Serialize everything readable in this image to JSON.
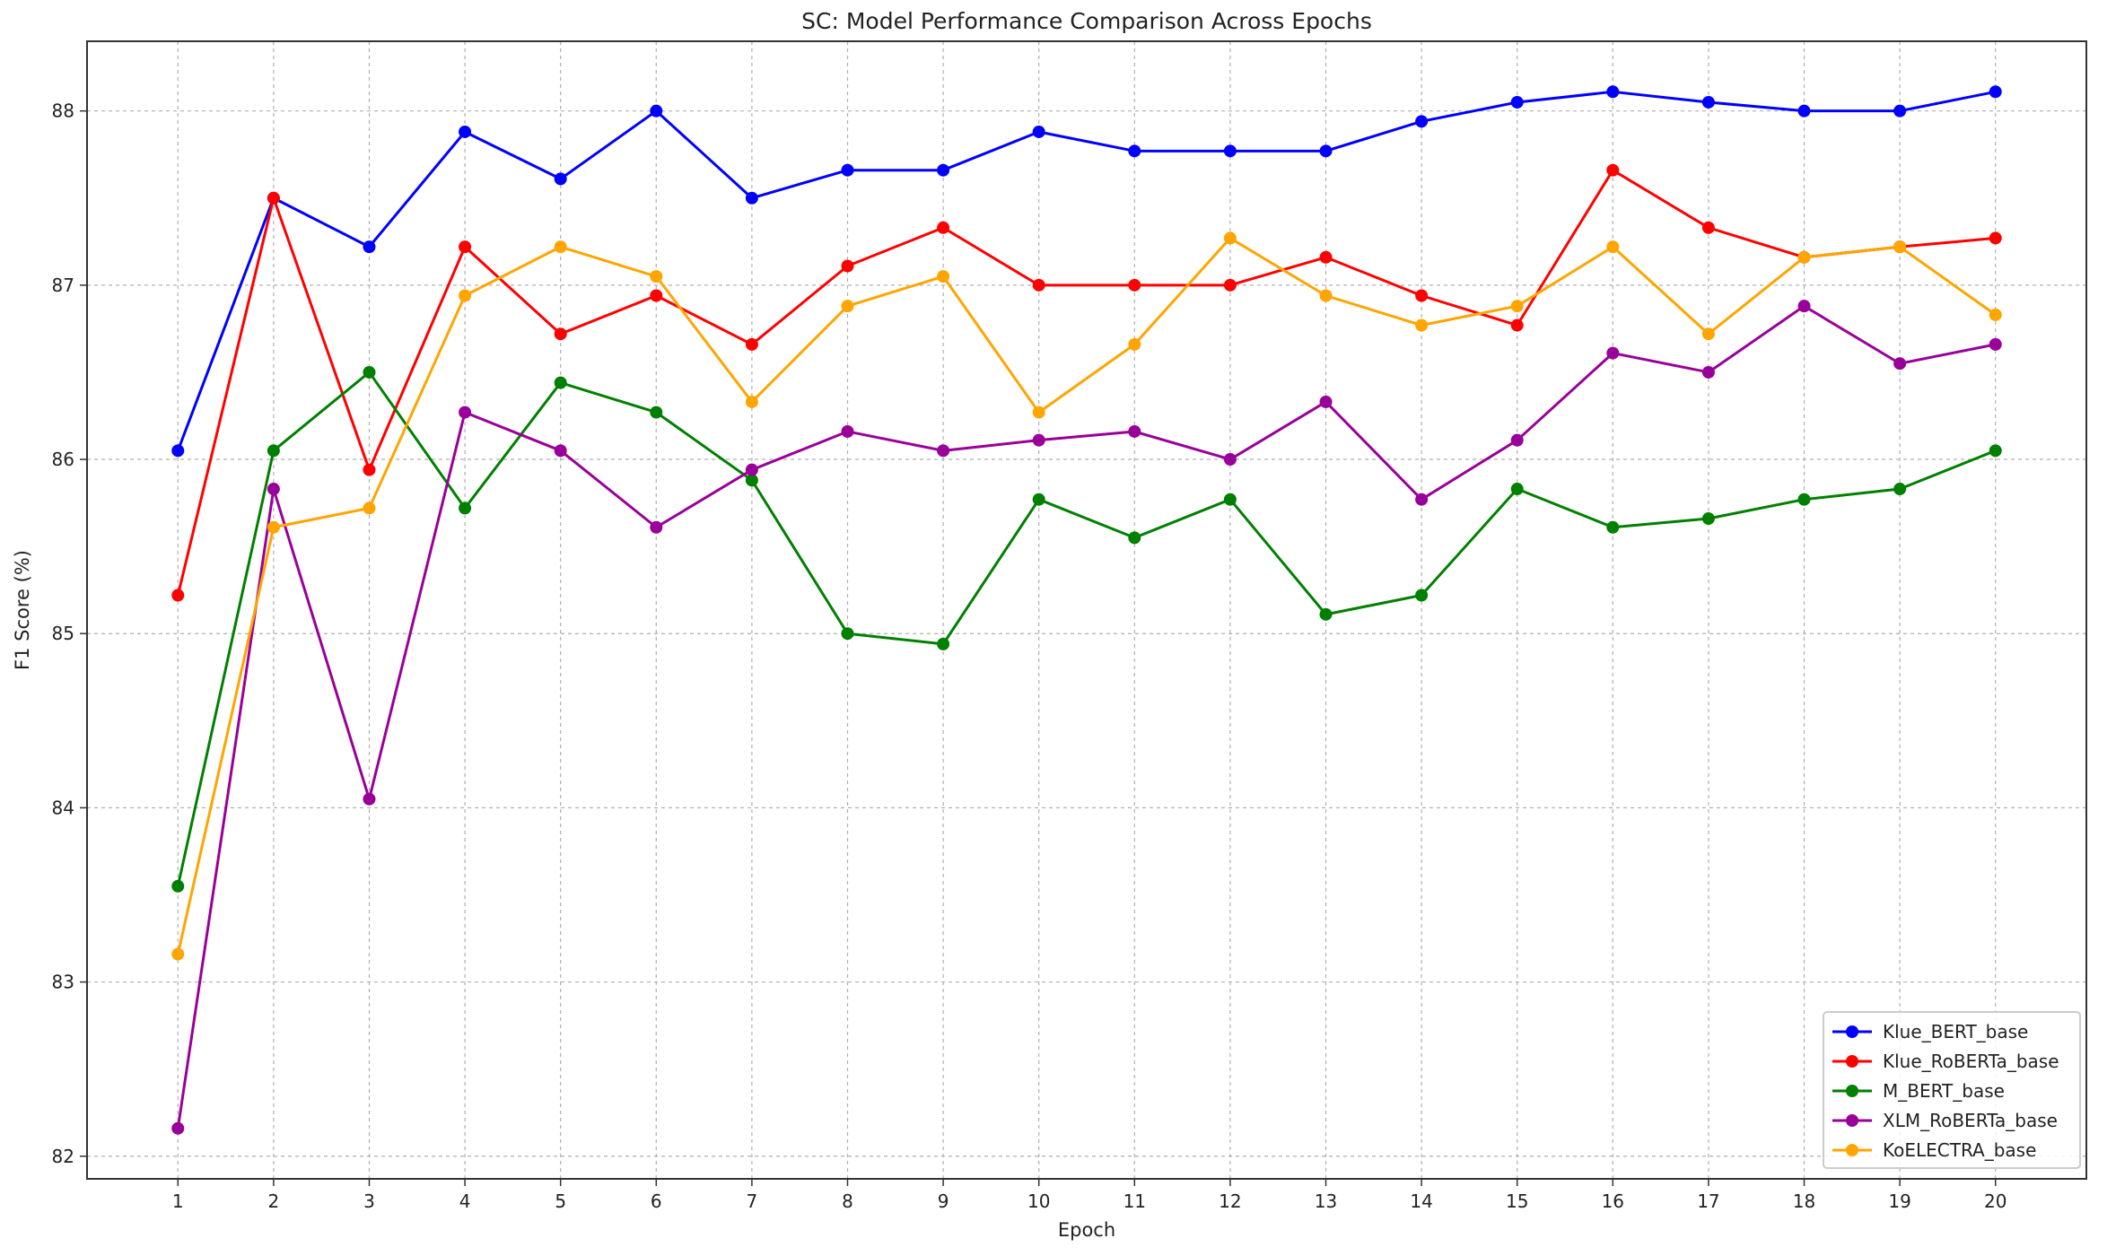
{
  "chart_data": {
    "type": "line",
    "title": "SC: Model Performance Comparison Across Epochs",
    "xlabel": "Epoch",
    "ylabel": "F1 Score (%)",
    "x": [
      1,
      2,
      3,
      4,
      5,
      6,
      7,
      8,
      9,
      10,
      11,
      12,
      13,
      14,
      15,
      16,
      17,
      18,
      19,
      20
    ],
    "xlim": [
      0.05,
      20.95
    ],
    "ylim": [
      81.87,
      88.4
    ],
    "yticks": [
      82,
      83,
      84,
      85,
      86,
      87,
      88
    ],
    "grid": true,
    "legend_position": "lower right",
    "series": [
      {
        "name": "Klue_BERT_base",
        "color": "#0000ff",
        "values": [
          86.05,
          87.5,
          87.22,
          87.88,
          87.61,
          88.0,
          87.5,
          87.66,
          87.66,
          87.88,
          87.77,
          87.77,
          87.77,
          87.94,
          88.05,
          88.11,
          88.05,
          88.0,
          88.0,
          88.11
        ]
      },
      {
        "name": "Klue_RoBERTa_base",
        "color": "#ff0000",
        "values": [
          85.22,
          87.5,
          85.94,
          87.22,
          86.72,
          86.94,
          86.66,
          87.11,
          87.33,
          87.0,
          87.0,
          87.0,
          87.16,
          86.94,
          86.77,
          87.66,
          87.33,
          87.16,
          87.22,
          87.27
        ]
      },
      {
        "name": "M_BERT_base",
        "color": "#008000",
        "values": [
          83.55,
          86.05,
          86.5,
          85.72,
          86.44,
          86.27,
          85.88,
          85.0,
          84.94,
          85.77,
          85.55,
          85.77,
          85.11,
          85.22,
          85.83,
          85.61,
          85.66,
          85.77,
          85.83,
          86.05
        ]
      },
      {
        "name": "XLM_RoBERTa_base",
        "color": "#990099",
        "values": [
          82.16,
          85.83,
          84.05,
          86.27,
          86.05,
          85.61,
          85.94,
          86.16,
          86.05,
          86.11,
          86.16,
          86.0,
          86.33,
          85.77,
          86.11,
          86.61,
          86.5,
          86.88,
          86.55,
          86.66
        ]
      },
      {
        "name": "KoELECTRA_base",
        "color": "#ffa500",
        "values": [
          83.16,
          85.61,
          85.72,
          86.94,
          87.22,
          87.05,
          86.33,
          86.88,
          87.05,
          86.27,
          86.66,
          87.27,
          86.94,
          86.77,
          86.88,
          87.22,
          86.72,
          87.16,
          87.22,
          86.83
        ]
      }
    ]
  }
}
